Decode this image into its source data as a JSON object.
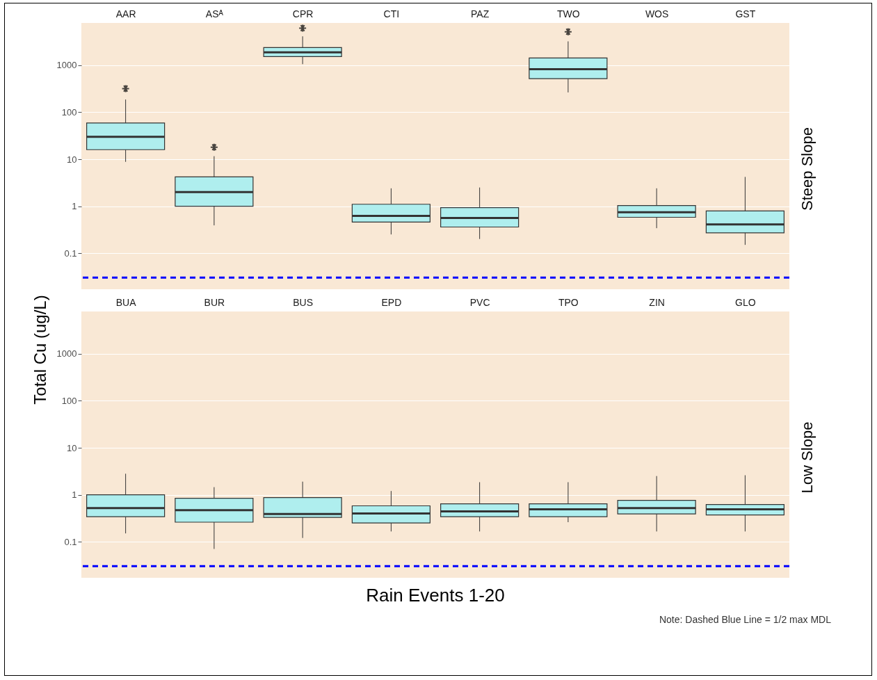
{
  "chart_data": [
    {
      "type": "box",
      "ylabel": "Total Cu (ug/L)",
      "y2label": "Steep Slope",
      "categories": [
        "AAR",
        "ASᴬ",
        "CPR",
        "CTI",
        "PAZ",
        "TWO",
        "WOS",
        "GST"
      ],
      "color": "#afeeee",
      "log": true,
      "ylim": [
        0.017,
        8000
      ],
      "yticks": [
        0.1,
        1,
        10,
        100,
        1000
      ],
      "grid": "y",
      "boxes": [
        {
          "low": 8.8,
          "q1": 16,
          "median": 30,
          "q3": 59,
          "high": 187,
          "outliers": [
            320
          ]
        },
        {
          "low": 0.39,
          "q1": 1.0,
          "median": 2.0,
          "q3": 4.2,
          "high": 11.6,
          "outliers": [
            18
          ]
        },
        {
          "low": 1060,
          "q1": 1540,
          "median": 1900,
          "q3": 2400,
          "high": 4150,
          "outliers": [
            6200
          ]
        },
        {
          "low": 0.25,
          "q1": 0.46,
          "median": 0.62,
          "q3": 1.1,
          "high": 2.4
        },
        {
          "low": 0.2,
          "q1": 0.36,
          "median": 0.56,
          "q3": 0.93,
          "high": 2.5
        },
        {
          "low": 265,
          "q1": 520,
          "median": 830,
          "q3": 1440,
          "high": 3240,
          "outliers": [
            5200
          ]
        },
        {
          "low": 0.34,
          "q1": 0.58,
          "median": 0.74,
          "q3": 1.03,
          "high": 2.4
        },
        {
          "low": 0.15,
          "q1": 0.27,
          "median": 0.41,
          "q3": 0.79,
          "high": 4.2
        }
      ],
      "ref_lines": [
        {
          "axis": "y",
          "value": 0.03,
          "color": "#0000ff",
          "line_style": "dashed"
        }
      ]
    },
    {
      "type": "box",
      "xlabel": "Rain Events 1-20",
      "y2label": "Low Slope",
      "categories": [
        "BUA",
        "BUR",
        "BUS",
        "EPD",
        "PVC",
        "TPO",
        "ZIN",
        "GLO"
      ],
      "color": "#afeeee",
      "log": true,
      "ylim": [
        0.017,
        8000
      ],
      "yticks": [
        0.1,
        1,
        10,
        100,
        1000
      ],
      "grid": "y",
      "boxes": [
        {
          "low": 0.15,
          "q1": 0.34,
          "median": 0.52,
          "q3": 1.0,
          "high": 2.8
        },
        {
          "low": 0.07,
          "q1": 0.26,
          "median": 0.47,
          "q3": 0.84,
          "high": 1.45
        },
        {
          "low": 0.12,
          "q1": 0.33,
          "median": 0.39,
          "q3": 0.87,
          "high": 1.9
        },
        {
          "low": 0.165,
          "q1": 0.25,
          "median": 0.4,
          "q3": 0.58,
          "high": 1.2
        },
        {
          "low": 0.165,
          "q1": 0.34,
          "median": 0.44,
          "q3": 0.64,
          "high": 1.85
        },
        {
          "low": 0.26,
          "q1": 0.34,
          "median": 0.49,
          "q3": 0.64,
          "high": 1.85
        },
        {
          "low": 0.165,
          "q1": 0.39,
          "median": 0.52,
          "q3": 0.76,
          "high": 2.5
        },
        {
          "low": 0.165,
          "q1": 0.37,
          "median": 0.49,
          "q3": 0.62,
          "high": 2.6
        }
      ],
      "ref_lines": [
        {
          "axis": "y",
          "value": 0.03,
          "color": "#0000ff",
          "line_style": "dashed"
        }
      ],
      "annotations": [
        "Note:  Dashed Blue Line = 1/2 max MDL"
      ]
    }
  ]
}
